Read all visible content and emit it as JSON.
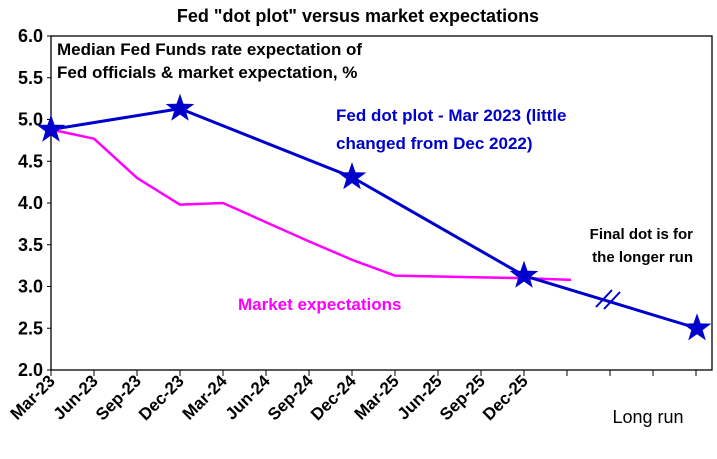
{
  "chart_data": {
    "type": "line",
    "title": "Fed \"dot plot\" versus market expectations",
    "subtitle_lines": [
      "Median Fed Funds rate expectation of",
      "Fed officials & market expectation, %"
    ],
    "ylim": [
      2.0,
      6.0
    ],
    "yticks": [
      "6.0",
      "5.5",
      "5.0",
      "4.5",
      "4.0",
      "3.5",
      "3.0",
      "2.5",
      "2.0"
    ],
    "categories": [
      "Mar-23",
      "Jun-23",
      "Sep-23",
      "Dec-23",
      "Mar-24",
      "Jun-24",
      "Sep-24",
      "Dec-24",
      "Mar-25",
      "Jun-25",
      "Sep-25",
      "Dec-25",
      "",
      "",
      "",
      "Long run"
    ],
    "x_tick_labels": [
      "Mar-23",
      "Jun-23",
      "Sep-23",
      "Dec-23",
      "Mar-24",
      "Jun-24",
      "Sep-24",
      "Dec-24",
      "Mar-25",
      "Jun-25",
      "Sep-25",
      "Dec-25"
    ],
    "long_run_label": "Long run",
    "grid": false,
    "series": [
      {
        "name": "Fed dot plot - Mar 2023 (little changed from Dec 2022)",
        "color": "#0000cc",
        "marker": "star",
        "x": [
          "Mar-23",
          "Dec-23",
          "Dec-24",
          "Dec-25",
          "Long run"
        ],
        "values": [
          4.88,
          5.13,
          4.31,
          3.13,
          2.5
        ]
      },
      {
        "name": "Market expectations",
        "color": "#ff00ff",
        "marker": "none",
        "x": [
          "Mar-23",
          "Jun-23",
          "Sep-23",
          "Dec-23",
          "Mar-24",
          "Jun-24",
          "Sep-24",
          "Dec-24",
          "Mar-25",
          "Jun-25",
          "Sep-25",
          "Dec-25",
          "Mar-26"
        ],
        "values": [
          4.88,
          4.77,
          4.3,
          3.98,
          4.0,
          3.77,
          3.54,
          3.32,
          3.13,
          3.12,
          3.11,
          3.1,
          3.08
        ]
      }
    ],
    "annotations": {
      "fed_label_lines": [
        "Fed dot plot - Mar 2023 (little",
        "changed from Dec 2022)"
      ],
      "market_label": "Market expectations",
      "final_dot_lines": [
        "Final dot is for",
        "the longer run"
      ]
    }
  }
}
